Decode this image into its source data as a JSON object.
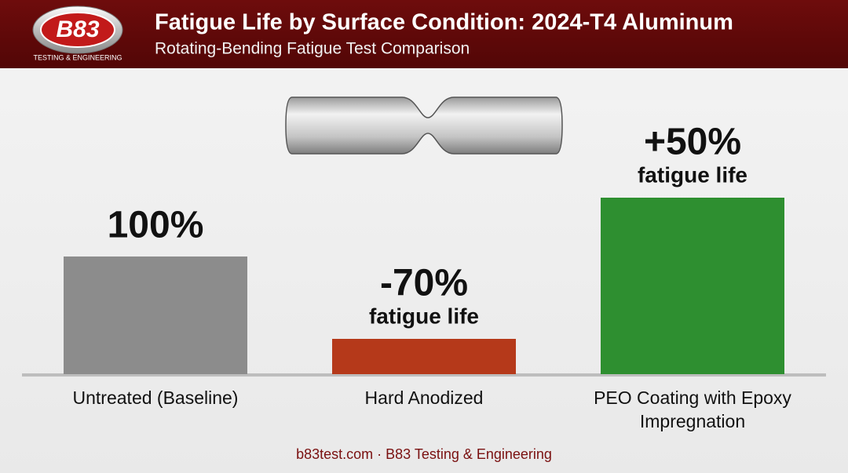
{
  "header": {
    "logo": "B83",
    "logo_tagline": "TESTING & ENGINEERING"
  },
  "chart_data": {
    "type": "bar",
    "title": "Fatigue Life by Surface Condition: 2024-T4 Aluminum",
    "subtitle": "Rotating-Bending Fatigue Test Comparison",
    "categories": [
      "Untreated (Baseline)",
      "Hard Anodized",
      "PEO Coating with Epoxy Impregnation"
    ],
    "values": [
      100,
      -70,
      50
    ],
    "value_labels": [
      "100%",
      "-70%",
      "+50%"
    ],
    "value_captions": [
      null,
      "fatigue life",
      "fatigue life"
    ],
    "colors": [
      "#8c8c8c",
      "#b5391a",
      "#2e8f30"
    ]
  },
  "footer": "b83test.com · B83 Testing & Engineering"
}
